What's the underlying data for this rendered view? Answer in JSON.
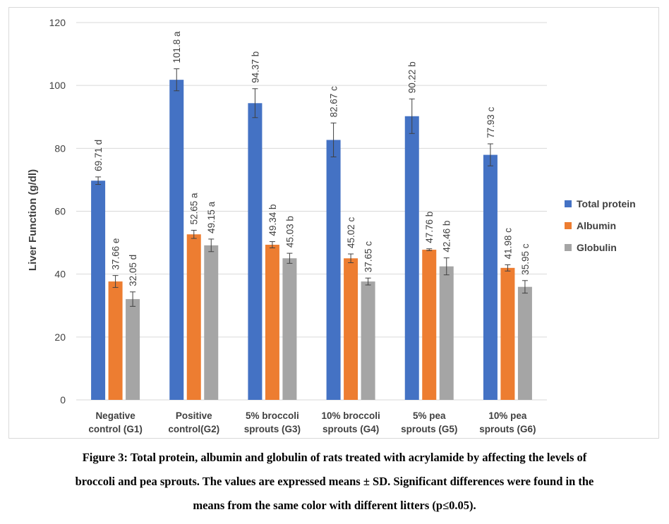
{
  "chart_data": {
    "type": "bar",
    "ylabel": "Liver Function (g/dl)",
    "ylim": [
      0,
      120
    ],
    "yticks": [
      0,
      20,
      40,
      60,
      80,
      100,
      120
    ],
    "grid": true,
    "legend_position": "right",
    "categories": [
      [
        "Negative",
        "control (G1)"
      ],
      [
        "Positive",
        "control(G2)"
      ],
      [
        "5% broccoli",
        "sprouts (G3)"
      ],
      [
        "10% broccoli",
        "sprouts (G4)"
      ],
      [
        "5% pea",
        "sprouts (G5)"
      ],
      [
        "10% pea",
        "sprouts (G6)"
      ]
    ],
    "series": [
      {
        "name": "Total protein",
        "color": "#4472c4",
        "values": [
          69.71,
          101.8,
          94.37,
          82.67,
          90.22,
          77.93
        ],
        "errors": [
          1.2,
          3.5,
          4.6,
          5.4,
          5.5,
          3.5
        ],
        "labels": [
          "69.71 d",
          "101.8 a",
          "94.37 b",
          "82.67 c",
          "90.22 b",
          "77.93 c"
        ]
      },
      {
        "name": "Albumin",
        "color": "#ed7d31",
        "values": [
          37.66,
          52.65,
          49.34,
          45.02,
          47.76,
          41.98
        ],
        "errors": [
          1.9,
          1.3,
          1.0,
          1.4,
          0.3,
          1.0
        ],
        "labels": [
          "37.66 e",
          "52.65 a",
          "49.34 b",
          "45.02 c",
          "47.76 b",
          "41.98 c"
        ]
      },
      {
        "name": "Globulin",
        "color": "#a5a5a5",
        "values": [
          32.05,
          49.15,
          45.03,
          37.65,
          42.46,
          35.95
        ],
        "errors": [
          2.3,
          2.0,
          1.6,
          1.1,
          2.7,
          2.0
        ],
        "labels": [
          "32.05 d",
          "49.15 a",
          "45.03 b",
          "37.65 c",
          "42.46 b",
          "35.95 c"
        ]
      }
    ]
  },
  "caption": {
    "line1": "Figure 3: Total protein, albumin and globulin of rats treated with acrylamide by affecting the levels of",
    "line2": "broccoli and pea sprouts. The values are expressed means ± SD. Significant differences were found in the",
    "line3": "means from the same color with different litters (p≤0.05)."
  }
}
